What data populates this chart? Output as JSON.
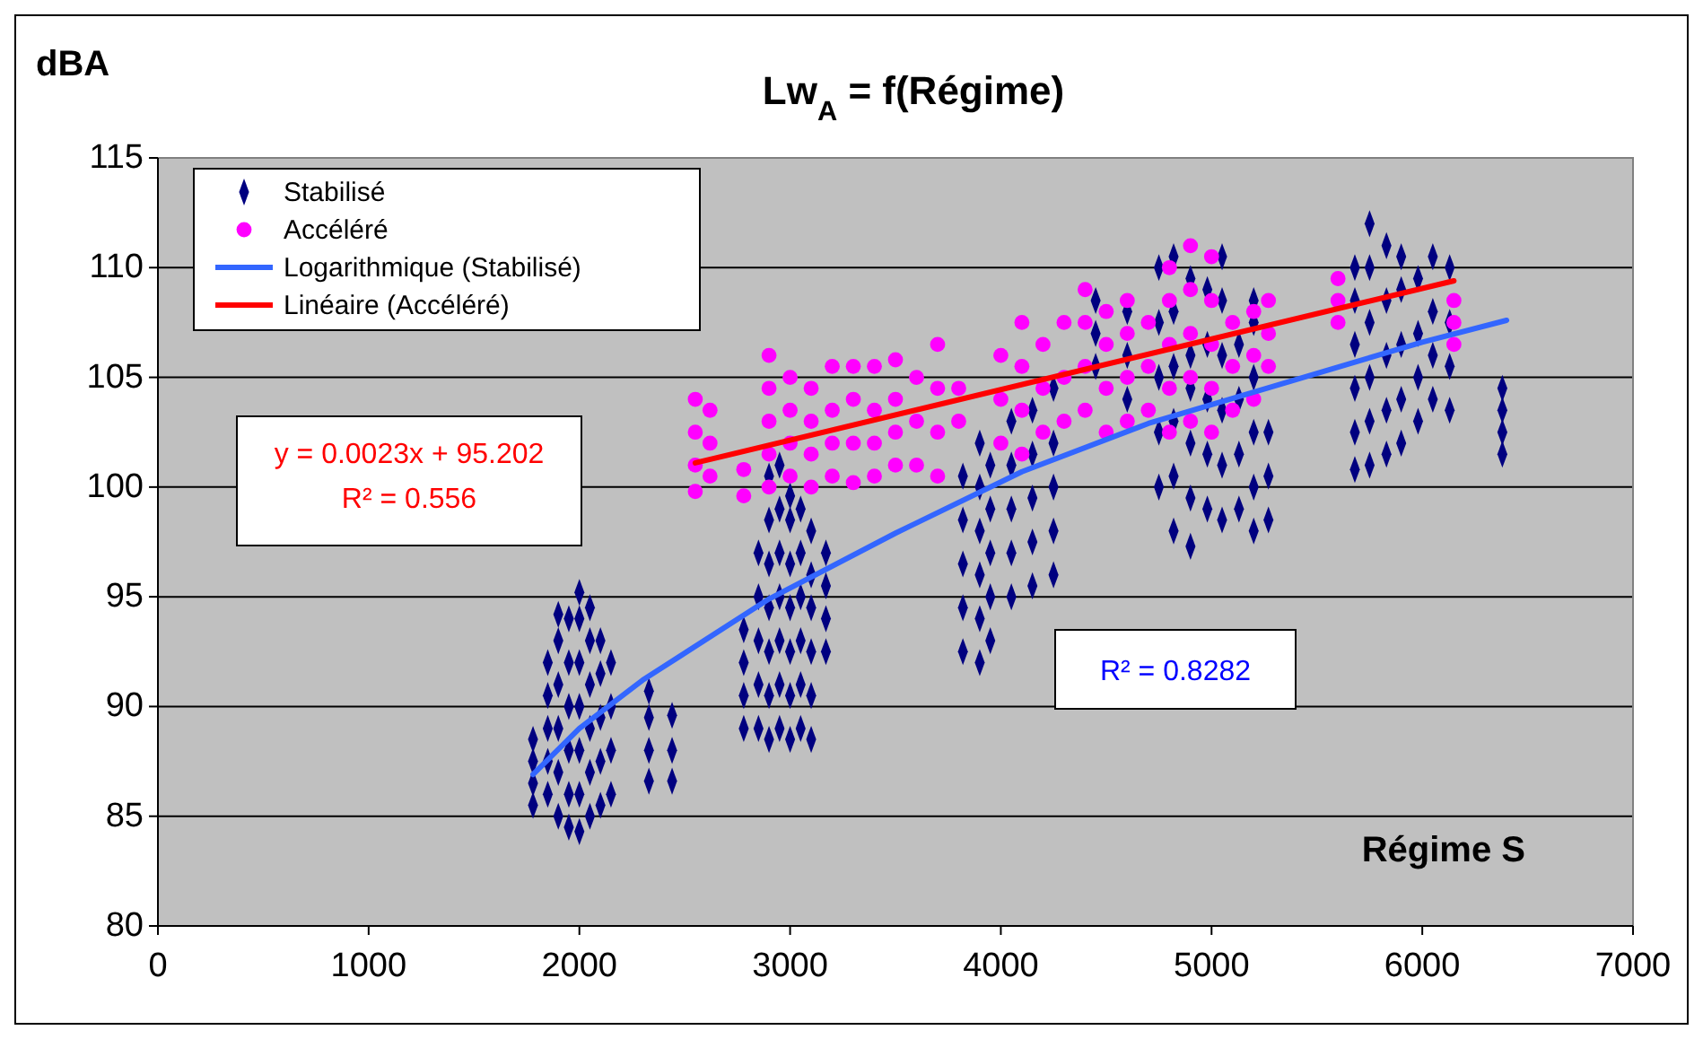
{
  "chart_data": {
    "type": "scatter",
    "title": "Lw$_{A}$ = f(Régime)",
    "xlabel": "Régime S",
    "ylabel": "dBA",
    "xlim": [
      0,
      7000
    ],
    "xticks": [
      0,
      1000,
      2000,
      3000,
      4000,
      5000,
      6000,
      7000
    ],
    "ylim": [
      80,
      115
    ],
    "yticks": [
      80,
      85,
      90,
      95,
      100,
      105,
      110,
      115
    ],
    "grid": "y",
    "legend": "top left",
    "annotations": [
      "y = 0.0023x + 95.202",
      "R² = 0.556",
      "R² = 0.8282"
    ],
    "series": [
      {
        "name": "Stabilisé",
        "marker": "diamond",
        "color": "#000080",
        "x": [
          1780,
          1780,
          1780,
          1780,
          1850,
          1850,
          1850,
          1850,
          1850,
          1900,
          1900,
          1900,
          1900,
          1900,
          1900,
          1950,
          1950,
          1950,
          1950,
          1950,
          1950,
          2000,
          2000,
          2000,
          2000,
          2000,
          2000,
          2000,
          2050,
          2050,
          2050,
          2050,
          2050,
          2050,
          2100,
          2100,
          2100,
          2100,
          2100,
          2150,
          2150,
          2150,
          2150,
          2330,
          2330,
          2330,
          2330,
          2440,
          2440,
          2440,
          2780,
          2780,
          2780,
          2780,
          2850,
          2850,
          2850,
          2850,
          2850,
          2900,
          2900,
          2900,
          2900,
          2900,
          2900,
          2900,
          2950,
          2950,
          2950,
          2950,
          2950,
          2950,
          2950,
          3000,
          3000,
          3000,
          3000,
          3000,
          3000,
          3000,
          3050,
          3050,
          3050,
          3050,
          3050,
          3050,
          3100,
          3100,
          3100,
          3100,
          3100,
          3100,
          3170,
          3170,
          3170,
          3170,
          3820,
          3820,
          3820,
          3820,
          3820,
          3900,
          3900,
          3900,
          3900,
          3900,
          3900,
          3950,
          3950,
          3950,
          3950,
          3950,
          4050,
          4050,
          4050,
          4050,
          4050,
          4150,
          4150,
          4150,
          4150,
          4150,
          4250,
          4250,
          4250,
          4250,
          4250,
          4450,
          4450,
          4450,
          4600,
          4600,
          4600,
          4750,
          4750,
          4750,
          4750,
          4750,
          4820,
          4820,
          4820,
          4820,
          4820,
          4820,
          4900,
          4900,
          4900,
          4900,
          4900,
          4900,
          4980,
          4980,
          4980,
          4980,
          4980,
          5050,
          5050,
          5050,
          5050,
          5050,
          5050,
          5130,
          5130,
          5130,
          5130,
          5200,
          5200,
          5200,
          5200,
          5200,
          5200,
          5270,
          5270,
          5270,
          5680,
          5680,
          5680,
          5680,
          5680,
          5680,
          5750,
          5750,
          5750,
          5750,
          5750,
          5750,
          5830,
          5830,
          5830,
          5830,
          5830,
          5900,
          5900,
          5900,
          5900,
          5900,
          5980,
          5980,
          5980,
          5980,
          6050,
          6050,
          6050,
          6050,
          6130,
          6130,
          6130,
          6130,
          6380,
          6380,
          6380,
          6380
        ],
        "values": [
          85.5,
          86.5,
          87.5,
          88.5,
          86,
          87.5,
          89,
          90.5,
          92,
          85,
          87,
          89,
          91,
          93,
          94.2,
          84.5,
          86,
          88,
          90,
          92,
          94,
          84.3,
          86,
          88,
          90,
          92,
          94,
          95.2,
          85,
          87,
          89,
          91,
          93,
          94.5,
          85.5,
          87.5,
          89.5,
          91.5,
          93,
          86,
          88,
          90,
          92,
          86.6,
          88,
          89.5,
          90.7,
          86.6,
          88,
          89.6,
          89,
          90.5,
          92,
          93.5,
          89,
          91,
          93,
          95,
          97,
          88.5,
          90.5,
          92.5,
          94.5,
          96.5,
          98.5,
          100.5,
          89,
          91,
          93,
          95,
          97,
          99,
          101,
          88.5,
          90.5,
          92.5,
          94.5,
          96.5,
          98.5,
          99.6,
          89,
          91,
          93,
          95,
          97,
          99,
          88.5,
          90.5,
          92.5,
          94.5,
          96,
          98,
          92.5,
          94,
          95.5,
          97,
          92.5,
          94.5,
          96.5,
          98.5,
          100.5,
          92,
          94,
          96,
          98,
          100,
          102,
          93,
          95,
          97,
          99,
          101,
          95,
          97,
          99,
          101,
          103,
          95.5,
          97.5,
          99.5,
          101.5,
          103.5,
          96,
          98,
          100,
          102,
          104.5,
          105.5,
          107,
          108.5,
          104,
          106,
          108,
          100,
          102.5,
          105,
          107.5,
          110,
          98,
          100.5,
          103,
          105.5,
          108,
          110.5,
          97.3,
          99.5,
          102,
          104.5,
          106,
          109.5,
          99,
          101.5,
          104,
          106.5,
          109,
          98.5,
          101,
          103.5,
          106,
          108.5,
          110.5,
          99,
          101.5,
          104,
          106.5,
          98,
          100,
          102.5,
          105,
          107.5,
          108.5,
          98.5,
          100.5,
          102.5,
          100.8,
          102.5,
          104.5,
          106.5,
          108.5,
          110,
          101,
          103,
          105,
          107.5,
          110,
          112,
          101.5,
          103.5,
          106,
          108.5,
          111,
          102,
          104,
          106.5,
          109,
          110.5,
          103,
          105,
          107,
          109.5,
          104,
          106,
          108,
          110.5,
          103.5,
          105.5,
          107.5,
          110,
          101.5,
          102.5,
          103.5,
          104.5
        ]
      },
      {
        "name": "Accéléré",
        "marker": "circle",
        "color": "#ff00ff",
        "x": [
          2550,
          2550,
          2550,
          2550,
          2620,
          2620,
          2620,
          2780,
          2780,
          2900,
          2900,
          2900,
          2900,
          2900,
          3000,
          3000,
          3000,
          3000,
          3100,
          3100,
          3100,
          3100,
          3200,
          3200,
          3200,
          3200,
          3300,
          3300,
          3300,
          3300,
          3400,
          3400,
          3400,
          3400,
          3500,
          3500,
          3500,
          3500,
          3600,
          3600,
          3600,
          3700,
          3700,
          3700,
          3700,
          3800,
          3800,
          4000,
          4000,
          4000,
          4100,
          4100,
          4100,
          4100,
          4200,
          4200,
          4200,
          4300,
          4300,
          4300,
          4400,
          4400,
          4400,
          4400,
          4500,
          4500,
          4500,
          4500,
          4600,
          4600,
          4600,
          4600,
          4700,
          4700,
          4700,
          4800,
          4800,
          4800,
          4800,
          4800,
          4900,
          4900,
          4900,
          4900,
          4900,
          5000,
          5000,
          5000,
          5000,
          5000,
          5100,
          5100,
          5100,
          5200,
          5200,
          5200,
          5270,
          5270,
          5270,
          5600,
          5600,
          5600,
          6150,
          6150,
          6150
        ],
        "values": [
          99.8,
          101,
          102.5,
          104,
          100.5,
          102,
          103.5,
          99.6,
          100.8,
          100,
          101.5,
          103,
          104.5,
          106,
          100.5,
          102,
          103.5,
          105,
          100,
          101.5,
          103,
          104.5,
          100.5,
          102,
          103.5,
          105.5,
          100.2,
          102,
          104,
          105.5,
          100.5,
          102,
          103.5,
          105.5,
          101,
          102.5,
          104,
          105.8,
          101,
          103,
          105,
          100.5,
          102.5,
          104.5,
          106.5,
          103,
          104.5,
          102,
          104,
          106,
          101.5,
          103.5,
          105.5,
          107.5,
          102.5,
          104.5,
          106.5,
          103,
          105,
          107.5,
          103.5,
          105.5,
          107.5,
          109,
          102.5,
          104.5,
          106.5,
          108,
          103,
          105,
          107,
          108.5,
          103.5,
          105.5,
          107.5,
          102.5,
          104.5,
          106.5,
          108.5,
          110,
          103,
          105,
          107,
          109,
          111,
          102.5,
          104.5,
          106.5,
          108.5,
          110.5,
          103.5,
          105.5,
          107.5,
          104,
          106,
          108,
          105.5,
          107,
          108.5,
          107.5,
          108.5,
          109.5,
          106.5,
          107.5,
          108.5
        ]
      },
      {
        "name": "Logarithmique (Stabilisé)",
        "type": "line",
        "marker": "none",
        "color": "#3366ff",
        "x": [
          1780,
          2000,
          2300,
          2900,
          3500,
          4100,
          4700,
          5400,
          6000,
          6400
        ],
        "values": [
          86.9,
          89,
          91.2,
          94.9,
          97.9,
          100.7,
          102.9,
          104.9,
          106.6,
          107.6
        ]
      },
      {
        "name": "Linéaire (Accéléré)",
        "type": "line",
        "marker": "none",
        "color": "#ff0000",
        "x": [
          2550,
          6150
        ],
        "values": [
          101.1,
          109.4
        ]
      }
    ]
  }
}
